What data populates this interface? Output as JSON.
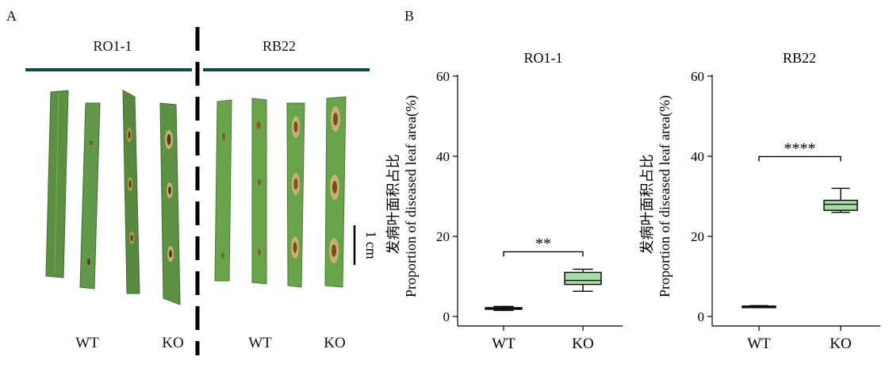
{
  "panel_a": {
    "label": "A",
    "group_left": "RO1-1",
    "group_right": "RB22",
    "scale_label": "1 cm",
    "x_labels_left": [
      "WT",
      "KO"
    ],
    "x_labels_right": [
      "WT",
      "KO"
    ]
  },
  "panel_b": {
    "label": "B"
  },
  "colors": {
    "box_fill": "#a8dba8",
    "divider": "#0b4a44",
    "leaf": "#5c9144"
  },
  "chart_data": [
    {
      "type": "box",
      "title": "RO1-1",
      "ylabel_zh": "发病叶面积占比",
      "ylabel_en": "Proportion of diseased leaf area(%)",
      "categories": [
        "WT",
        "KO"
      ],
      "yticks": [
        0,
        20,
        40,
        60
      ],
      "ylim": [
        0,
        60
      ],
      "boxes": [
        {
          "min": 1.5,
          "q1": 1.8,
          "median": 2.0,
          "q3": 2.2,
          "max": 2.5
        },
        {
          "min": 6.3,
          "q1": 8.0,
          "median": 9.0,
          "q3": 11.0,
          "max": 11.8
        }
      ],
      "significance": "**"
    },
    {
      "type": "box",
      "title": "RB22",
      "ylabel_zh": "发病叶面积占比",
      "ylabel_en": "Proportion of diseased leaf area(%)",
      "categories": [
        "WT",
        "KO"
      ],
      "yticks": [
        0,
        20,
        40,
        60
      ],
      "ylim": [
        0,
        60
      ],
      "boxes": [
        {
          "min": 2.3,
          "q1": 2.4,
          "median": 2.5,
          "q3": 2.6,
          "max": 2.7
        },
        {
          "min": 26.0,
          "q1": 26.5,
          "median": 28.0,
          "q3": 29.0,
          "max": 32.0
        }
      ],
      "significance": "****"
    }
  ]
}
